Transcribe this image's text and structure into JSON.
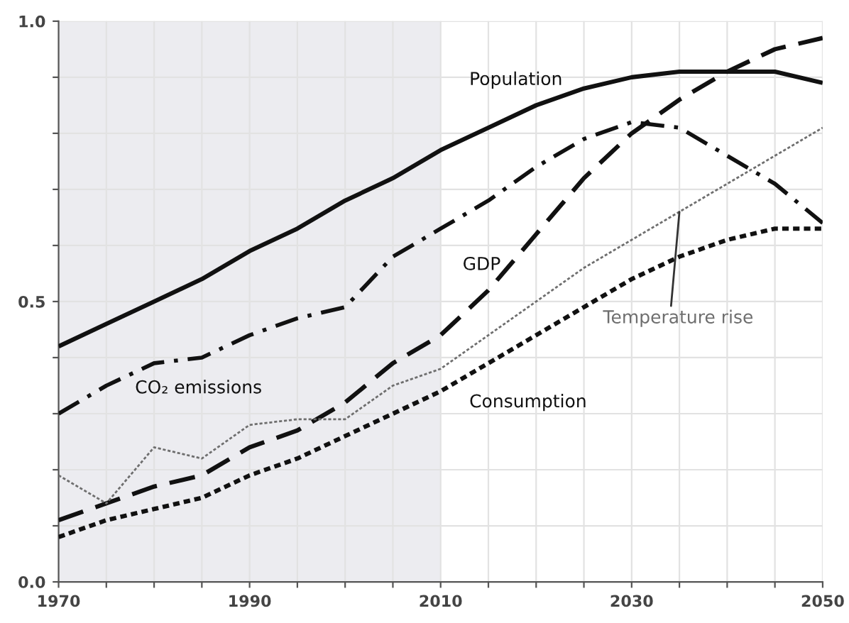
{
  "chart_data": {
    "type": "line",
    "x": [
      1970,
      1975,
      1980,
      1985,
      1990,
      1995,
      2000,
      2005,
      2010,
      2015,
      2020,
      2025,
      2030,
      2035,
      2040,
      2045,
      2050
    ],
    "series": [
      {
        "name": "Population",
        "color": "#111111",
        "line_style": "solid",
        "values": [
          0.42,
          0.46,
          0.5,
          0.54,
          0.59,
          0.63,
          0.68,
          0.72,
          0.77,
          0.81,
          0.85,
          0.88,
          0.9,
          0.91,
          0.91,
          0.91,
          0.89
        ]
      },
      {
        "name": "CO₂ emissions",
        "color": "#111111",
        "line_style": "dashdot",
        "values": [
          0.3,
          0.35,
          0.39,
          0.4,
          0.44,
          0.47,
          0.49,
          0.58,
          0.63,
          0.68,
          0.74,
          0.79,
          0.82,
          0.81,
          0.76,
          0.71,
          0.64
        ]
      },
      {
        "name": "GDP",
        "color": "#111111",
        "line_style": "dashed",
        "values": [
          0.11,
          0.14,
          0.17,
          0.19,
          0.24,
          0.27,
          0.32,
          0.39,
          0.44,
          0.52,
          0.62,
          0.72,
          0.8,
          0.86,
          0.91,
          0.95,
          0.97
        ]
      },
      {
        "name": "Temperature rise",
        "color": "#6e6e6e",
        "line_style": "dotted",
        "values": [
          0.19,
          0.14,
          0.24,
          0.22,
          0.28,
          0.29,
          0.29,
          0.35,
          0.38,
          0.44,
          0.5,
          0.56,
          0.61,
          0.66,
          0.71,
          0.76,
          0.81
        ]
      },
      {
        "name": "Consumption",
        "color": "#111111",
        "line_style": "dotted",
        "values": [
          0.08,
          0.11,
          0.13,
          0.15,
          0.19,
          0.22,
          0.26,
          0.3,
          0.34,
          0.39,
          0.44,
          0.49,
          0.54,
          0.58,
          0.61,
          0.63,
          0.63
        ]
      }
    ],
    "xlim": [
      1970,
      2050
    ],
    "xticks": [
      1970,
      {
        "value": 1975,
        "label": null
      },
      {
        "value": 1980,
        "label": null
      },
      {
        "value": 1985,
        "label": null
      },
      1990,
      {
        "value": 1995,
        "label": null
      },
      {
        "value": 2000,
        "label": null
      },
      {
        "value": 2005,
        "label": null
      },
      2010,
      {
        "value": 2015,
        "label": null
      },
      {
        "value": 2020,
        "label": null
      },
      {
        "value": 2025,
        "label": null
      },
      2030,
      {
        "value": 2035,
        "label": null
      },
      {
        "value": 2040,
        "label": null
      },
      {
        "value": 2045,
        "label": null
      },
      2050
    ],
    "ylim": [
      0,
      1
    ],
    "yticks": [
      {
        "value": 0,
        "label": "0.0"
      },
      {
        "value": 0.1,
        "label": null
      },
      {
        "value": 0.2,
        "label": null
      },
      {
        "value": 0.3,
        "label": null
      },
      {
        "value": 0.4,
        "label": null
      },
      {
        "value": 0.5,
        "label": "0.5"
      },
      {
        "value": 0.6,
        "label": null
      },
      {
        "value": 0.7,
        "label": null
      },
      {
        "value": 0.8,
        "label": null
      },
      {
        "value": 0.9,
        "label": null
      },
      {
        "value": 1,
        "label": "1.0"
      }
    ],
    "bands": [
      {
        "axis": "x",
        "from": 1970,
        "to": 2010,
        "color": "#ececf0"
      }
    ],
    "grid": true,
    "legend": false
  }
}
